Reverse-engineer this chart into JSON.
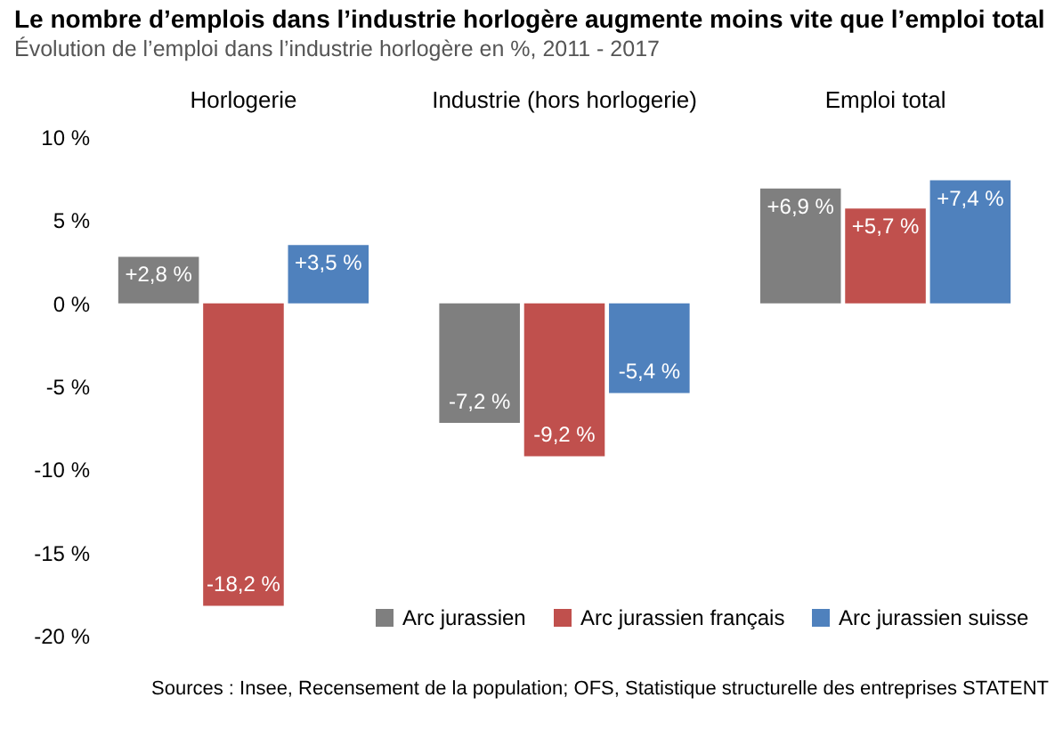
{
  "chart_data": {
    "type": "bar",
    "title": "Le nombre d’emplois dans l’industrie horlogère augmente moins vite que l’emploi total",
    "subtitle": "Évolution de l’emploi dans l’industrie horlogère en %, 2011 - 2017",
    "categories": [
      "Horlogerie",
      "Industrie (hors horlogerie)",
      "Emploi total"
    ],
    "series": [
      {
        "name": "Arc jurassien",
        "color": "#7f7f7f",
        "values": [
          2.8,
          -7.2,
          6.9
        ],
        "value_labels": [
          "+2,8 %",
          "-7,2 %",
          "+6,9 %"
        ]
      },
      {
        "name": "Arc jurassien français",
        "color": "#c0504d",
        "values": [
          -18.2,
          -9.2,
          5.7
        ],
        "value_labels": [
          "-18,2 %",
          "-9,2 %",
          "+5,7 %"
        ]
      },
      {
        "name": "Arc jurassien suisse",
        "color": "#4f81bd",
        "values": [
          3.5,
          -5.4,
          7.4
        ],
        "value_labels": [
          "+3,5 %",
          "-5,4 %",
          "+7,4 %"
        ]
      }
    ],
    "ylim": [
      -20,
      10
    ],
    "yticks": [
      {
        "value": -20,
        "label": "-20 %"
      },
      {
        "value": -15,
        "label": "-15 %"
      },
      {
        "value": -10,
        "label": "-10 %"
      },
      {
        "value": -5,
        "label": "-5 %"
      },
      {
        "value": 0,
        "label": "0 %"
      },
      {
        "value": 5,
        "label": "5 %"
      },
      {
        "value": 10,
        "label": "10 %"
      }
    ],
    "legend": "bottom right",
    "grid": false,
    "annotations": [
      "Sources : Insee, Recensement de la population; OFS, Statistique structurelle des entreprises STATENT"
    ]
  }
}
